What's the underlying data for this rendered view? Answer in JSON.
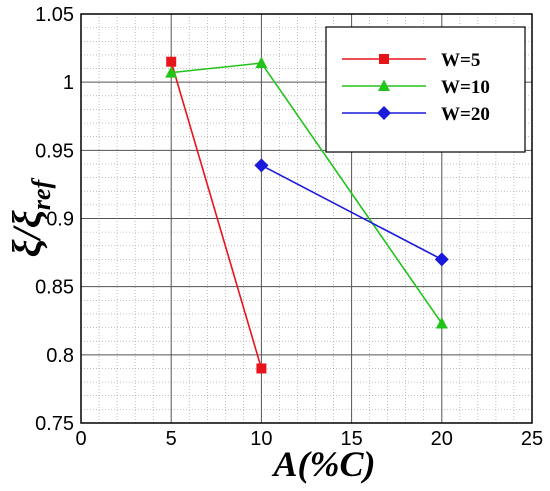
{
  "chart_data": {
    "type": "line",
    "xlabel": "A(%C)",
    "ylabel_main": "ξ/ξ",
    "ylabel_sub": "ref",
    "xlim": [
      0,
      25
    ],
    "ylim": [
      0.75,
      1.05
    ],
    "xticks": [
      0,
      5,
      10,
      15,
      20,
      25
    ],
    "xtick_labels": [
      "0",
      "5",
      "10",
      "15",
      "20",
      "25"
    ],
    "yticks": [
      0.75,
      0.8,
      0.85,
      0.9,
      0.95,
      1.0,
      1.05
    ],
    "ytick_labels": [
      "0.75",
      "0.8",
      "0.85",
      "0.9",
      "0.95",
      "1",
      "1.05"
    ],
    "grid": true,
    "minor_grid": true,
    "legend_position": "top-right",
    "series": [
      {
        "name": "W=5",
        "color": "#e8141b",
        "marker": "square",
        "x": [
          5,
          10
        ],
        "y": [
          1.015,
          0.79
        ]
      },
      {
        "name": "W=10",
        "color": "#22c41c",
        "marker": "triangle",
        "x": [
          5,
          10,
          20
        ],
        "y": [
          1.007,
          1.014,
          0.823
        ]
      },
      {
        "name": "W=20",
        "color": "#1a1adb",
        "marker": "diamond",
        "x": [
          10,
          20
        ],
        "y": [
          0.939,
          0.87
        ]
      }
    ]
  }
}
